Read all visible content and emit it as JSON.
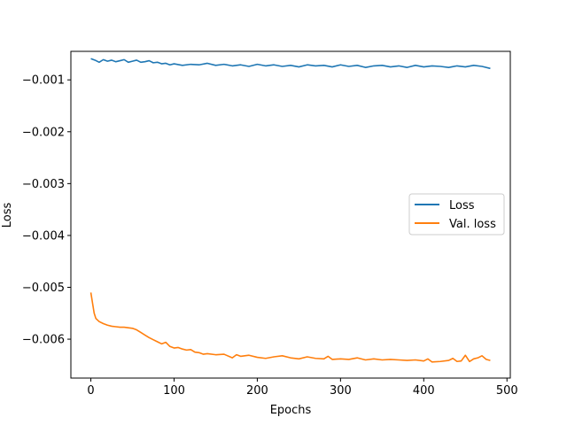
{
  "chart_data": {
    "type": "line",
    "title": "",
    "xlabel": "Epochs",
    "ylabel": "Loss",
    "xlim": [
      -24,
      504
    ],
    "ylim": [
      -0.00675,
      -0.00045
    ],
    "xticks": [
      0,
      100,
      200,
      300,
      400,
      500
    ],
    "xtick_labels": [
      "0",
      "100",
      "200",
      "300",
      "400",
      "500"
    ],
    "yticks": [
      -0.006,
      -0.005,
      -0.004,
      -0.003,
      -0.002,
      -0.001
    ],
    "ytick_labels": [
      "−0.006",
      "−0.005",
      "−0.004",
      "−0.003",
      "−0.002",
      "−0.001"
    ],
    "grid": false,
    "legend_position": "center-right",
    "series": [
      {
        "name": "Loss",
        "color": "#1f77b4",
        "x": [
          0,
          5,
          10,
          15,
          20,
          25,
          30,
          35,
          40,
          45,
          50,
          55,
          60,
          65,
          70,
          75,
          80,
          85,
          90,
          95,
          100,
          110,
          120,
          130,
          140,
          150,
          160,
          170,
          180,
          190,
          200,
          210,
          220,
          230,
          240,
          250,
          260,
          270,
          280,
          290,
          300,
          310,
          320,
          330,
          340,
          350,
          360,
          370,
          380,
          390,
          400,
          410,
          420,
          430,
          440,
          450,
          460,
          470,
          480
        ],
        "y": [
          -0.00059,
          -0.00062,
          -0.00066,
          -0.00061,
          -0.00064,
          -0.00062,
          -0.00065,
          -0.00063,
          -0.00061,
          -0.00066,
          -0.00064,
          -0.00062,
          -0.00066,
          -0.00065,
          -0.00063,
          -0.00067,
          -0.00066,
          -0.00069,
          -0.00068,
          -0.00071,
          -0.00069,
          -0.00072,
          -0.0007,
          -0.00071,
          -0.00068,
          -0.00072,
          -0.0007,
          -0.00073,
          -0.00071,
          -0.00074,
          -0.0007,
          -0.00073,
          -0.00071,
          -0.00074,
          -0.00072,
          -0.00075,
          -0.00071,
          -0.00073,
          -0.00072,
          -0.00075,
          -0.00071,
          -0.00074,
          -0.00072,
          -0.00076,
          -0.00073,
          -0.00072,
          -0.00075,
          -0.00073,
          -0.00076,
          -0.00072,
          -0.00075,
          -0.00073,
          -0.00074,
          -0.00076,
          -0.00073,
          -0.00075,
          -0.00072,
          -0.00074,
          -0.00078
        ]
      },
      {
        "name": "Val. loss",
        "color": "#ff7f0e",
        "x": [
          0,
          2,
          4,
          6,
          8,
          10,
          15,
          20,
          25,
          30,
          35,
          40,
          45,
          50,
          55,
          60,
          65,
          70,
          75,
          80,
          85,
          90,
          95,
          100,
          105,
          110,
          115,
          120,
          125,
          130,
          135,
          140,
          150,
          160,
          170,
          175,
          180,
          190,
          200,
          210,
          220,
          230,
          240,
          250,
          260,
          270,
          280,
          285,
          290,
          300,
          310,
          320,
          330,
          340,
          350,
          360,
          370,
          380,
          390,
          400,
          405,
          410,
          420,
          430,
          435,
          440,
          445,
          450,
          455,
          460,
          465,
          470,
          475,
          480
        ],
        "y": [
          -0.0051,
          -0.0053,
          -0.0055,
          -0.0056,
          -0.00563,
          -0.00566,
          -0.0057,
          -0.00573,
          -0.00575,
          -0.00576,
          -0.00577,
          -0.00577,
          -0.00578,
          -0.00579,
          -0.00582,
          -0.00587,
          -0.00592,
          -0.00597,
          -0.00601,
          -0.00605,
          -0.00609,
          -0.00606,
          -0.00614,
          -0.00617,
          -0.00616,
          -0.00619,
          -0.00621,
          -0.0062,
          -0.00625,
          -0.00626,
          -0.00629,
          -0.00628,
          -0.0063,
          -0.00629,
          -0.00636,
          -0.0063,
          -0.00633,
          -0.00631,
          -0.00635,
          -0.00637,
          -0.00634,
          -0.00632,
          -0.00636,
          -0.00638,
          -0.00634,
          -0.00637,
          -0.00638,
          -0.00633,
          -0.00639,
          -0.00638,
          -0.00639,
          -0.00636,
          -0.0064,
          -0.00638,
          -0.0064,
          -0.00639,
          -0.0064,
          -0.00641,
          -0.0064,
          -0.00642,
          -0.00638,
          -0.00644,
          -0.00643,
          -0.00641,
          -0.00637,
          -0.00643,
          -0.00642,
          -0.00631,
          -0.00643,
          -0.00638,
          -0.00636,
          -0.00632,
          -0.00639,
          -0.00641
        ]
      }
    ]
  }
}
